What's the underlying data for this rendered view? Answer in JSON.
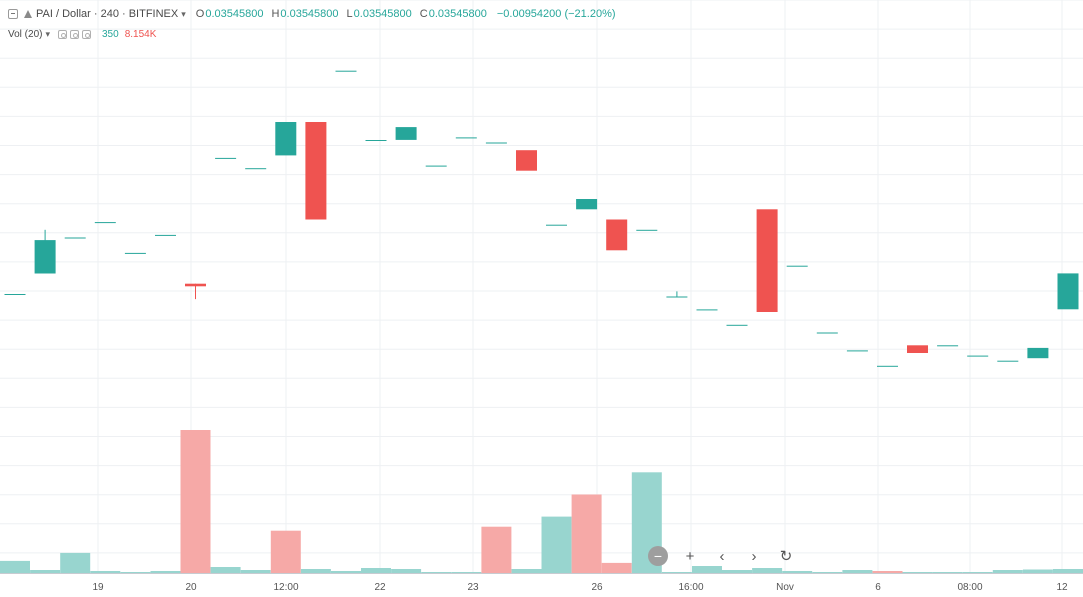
{
  "legend": {
    "symbol": "PAI / Dollar · 240 · BITFINEX",
    "open_label": "O",
    "open": "0.03545800",
    "high_label": "H",
    "high": "0.03545800",
    "low_label": "L",
    "low": "0.03545800",
    "close_label": "C",
    "close": "0.03545800",
    "change": "−0.00954200 (−21.20%)"
  },
  "volume_legend": {
    "label": "Vol (20)",
    "value_up": "350",
    "value_down": "8.154K"
  },
  "zoom": {
    "zoom_out": "−",
    "zoom_in": "+",
    "scroll_left": "‹",
    "scroll_right": "›",
    "reset": "↻"
  },
  "chart_data": {
    "type": "candlestick",
    "x_tick_labels": [
      "19",
      "20",
      "12:00",
      "22",
      "23",
      "26",
      "16:00",
      "Nov",
      "6",
      "08:00",
      "12"
    ],
    "colors": {
      "up": "#26a69a",
      "down": "#ef5350",
      "volume_up": "#98d5cf",
      "volume_down": "#f6a9a7"
    },
    "grid": true,
    "candles": [
      {
        "o": 0.0433,
        "h": 0.0433,
        "l": 0.0433,
        "c": 0.0433
      },
      {
        "o": 0.0441,
        "h": 0.0458,
        "l": 0.0441,
        "c": 0.0454
      },
      {
        "o": 0.0455,
        "h": 0.0455,
        "l": 0.0455,
        "c": 0.0455
      },
      {
        "o": 0.0461,
        "h": 0.0461,
        "l": 0.0461,
        "c": 0.0461
      },
      {
        "o": 0.0449,
        "h": 0.0449,
        "l": 0.0449,
        "c": 0.0449
      },
      {
        "o": 0.0456,
        "h": 0.0456,
        "l": 0.0456,
        "c": 0.0456
      },
      {
        "o": 0.0437,
        "h": 0.0437,
        "l": 0.0431,
        "c": 0.0436
      },
      {
        "o": 0.0486,
        "h": 0.0486,
        "l": 0.0486,
        "c": 0.0486
      },
      {
        "o": 0.0482,
        "h": 0.0482,
        "l": 0.0482,
        "c": 0.0482
      },
      {
        "o": 0.0487,
        "h": 0.05,
        "l": 0.0487,
        "c": 0.05
      },
      {
        "o": 0.05,
        "h": 0.05,
        "l": 0.0462,
        "c": 0.0462
      },
      {
        "o": 0.052,
        "h": 0.052,
        "l": 0.052,
        "c": 0.052
      },
      {
        "o": 0.0493,
        "h": 0.0493,
        "l": 0.0493,
        "c": 0.0493
      },
      {
        "o": 0.0493,
        "h": 0.0498,
        "l": 0.0493,
        "c": 0.0498
      },
      {
        "o": 0.0483,
        "h": 0.0483,
        "l": 0.0483,
        "c": 0.0483
      },
      {
        "o": 0.0494,
        "h": 0.0494,
        "l": 0.0494,
        "c": 0.0494
      },
      {
        "o": 0.0492,
        "h": 0.0492,
        "l": 0.0492,
        "c": 0.0492
      },
      {
        "o": 0.0489,
        "h": 0.0489,
        "l": 0.0481,
        "c": 0.0481
      },
      {
        "o": 0.046,
        "h": 0.046,
        "l": 0.046,
        "c": 0.046
      },
      {
        "o": 0.0466,
        "h": 0.047,
        "l": 0.0466,
        "c": 0.047
      },
      {
        "o": 0.0462,
        "h": 0.0462,
        "l": 0.045,
        "c": 0.045
      },
      {
        "o": 0.0458,
        "h": 0.0458,
        "l": 0.0458,
        "c": 0.0458
      },
      {
        "o": 0.0432,
        "h": 0.0434,
        "l": 0.0432,
        "c": 0.0432
      },
      {
        "o": 0.0427,
        "h": 0.0427,
        "l": 0.0427,
        "c": 0.0427
      },
      {
        "o": 0.0421,
        "h": 0.0421,
        "l": 0.0421,
        "c": 0.0421
      },
      {
        "o": 0.0466,
        "h": 0.0466,
        "l": 0.0426,
        "c": 0.0426
      },
      {
        "o": 0.0444,
        "h": 0.0444,
        "l": 0.0444,
        "c": 0.0444
      },
      {
        "o": 0.0418,
        "h": 0.0418,
        "l": 0.0418,
        "c": 0.0418
      },
      {
        "o": 0.0411,
        "h": 0.0411,
        "l": 0.0411,
        "c": 0.0411
      },
      {
        "o": 0.0405,
        "h": 0.0405,
        "l": 0.0405,
        "c": 0.0405
      },
      {
        "o": 0.0413,
        "h": 0.0413,
        "l": 0.041,
        "c": 0.041
      },
      {
        "o": 0.0413,
        "h": 0.0413,
        "l": 0.0413,
        "c": 0.0413
      },
      {
        "o": 0.0409,
        "h": 0.0409,
        "l": 0.0409,
        "c": 0.0409
      },
      {
        "o": 0.0407,
        "h": 0.0407,
        "l": 0.0407,
        "c": 0.0407
      },
      {
        "o": 0.0408,
        "h": 0.0412,
        "l": 0.0408,
        "c": 0.0412
      },
      {
        "o": 0.0427,
        "h": 0.0441,
        "l": 0.0427,
        "c": 0.0441
      }
    ],
    "volumes": [
      {
        "v": 1.2,
        "up": true
      },
      {
        "v": 0.3,
        "up": true
      },
      {
        "v": 2.0,
        "up": true
      },
      {
        "v": 0.2,
        "up": true
      },
      {
        "v": 0.1,
        "up": true
      },
      {
        "v": 0.2,
        "up": true
      },
      {
        "v": 14.2,
        "up": false
      },
      {
        "v": 0.6,
        "up": true
      },
      {
        "v": 0.3,
        "up": true
      },
      {
        "v": 4.2,
        "up": false
      },
      {
        "v": 0.4,
        "up": true
      },
      {
        "v": 0.2,
        "up": true
      },
      {
        "v": 0.5,
        "up": true
      },
      {
        "v": 0.4,
        "up": true
      },
      {
        "v": 0.1,
        "up": true
      },
      {
        "v": 0.1,
        "up": true
      },
      {
        "v": 4.6,
        "up": false
      },
      {
        "v": 0.4,
        "up": true
      },
      {
        "v": 5.6,
        "up": true
      },
      {
        "v": 7.8,
        "up": false
      },
      {
        "v": 1.0,
        "up": false
      },
      {
        "v": 10.0,
        "up": true
      },
      {
        "v": 0.1,
        "up": true
      },
      {
        "v": 0.7,
        "up": true
      },
      {
        "v": 0.3,
        "up": true
      },
      {
        "v": 0.5,
        "up": true
      },
      {
        "v": 0.2,
        "up": true
      },
      {
        "v": 0.1,
        "up": true
      },
      {
        "v": 0.3,
        "up": true
      },
      {
        "v": 0.2,
        "up": false
      },
      {
        "v": 0.1,
        "up": true
      },
      {
        "v": 0.1,
        "up": true
      },
      {
        "v": 0.1,
        "up": true
      },
      {
        "v": 0.3,
        "up": true
      },
      {
        "v": 0.35,
        "up": true
      },
      {
        "v": 0.4,
        "up": true
      }
    ],
    "price_range": [
      0.038,
      0.053
    ],
    "volume_range": [
      0,
      14.2
    ]
  }
}
